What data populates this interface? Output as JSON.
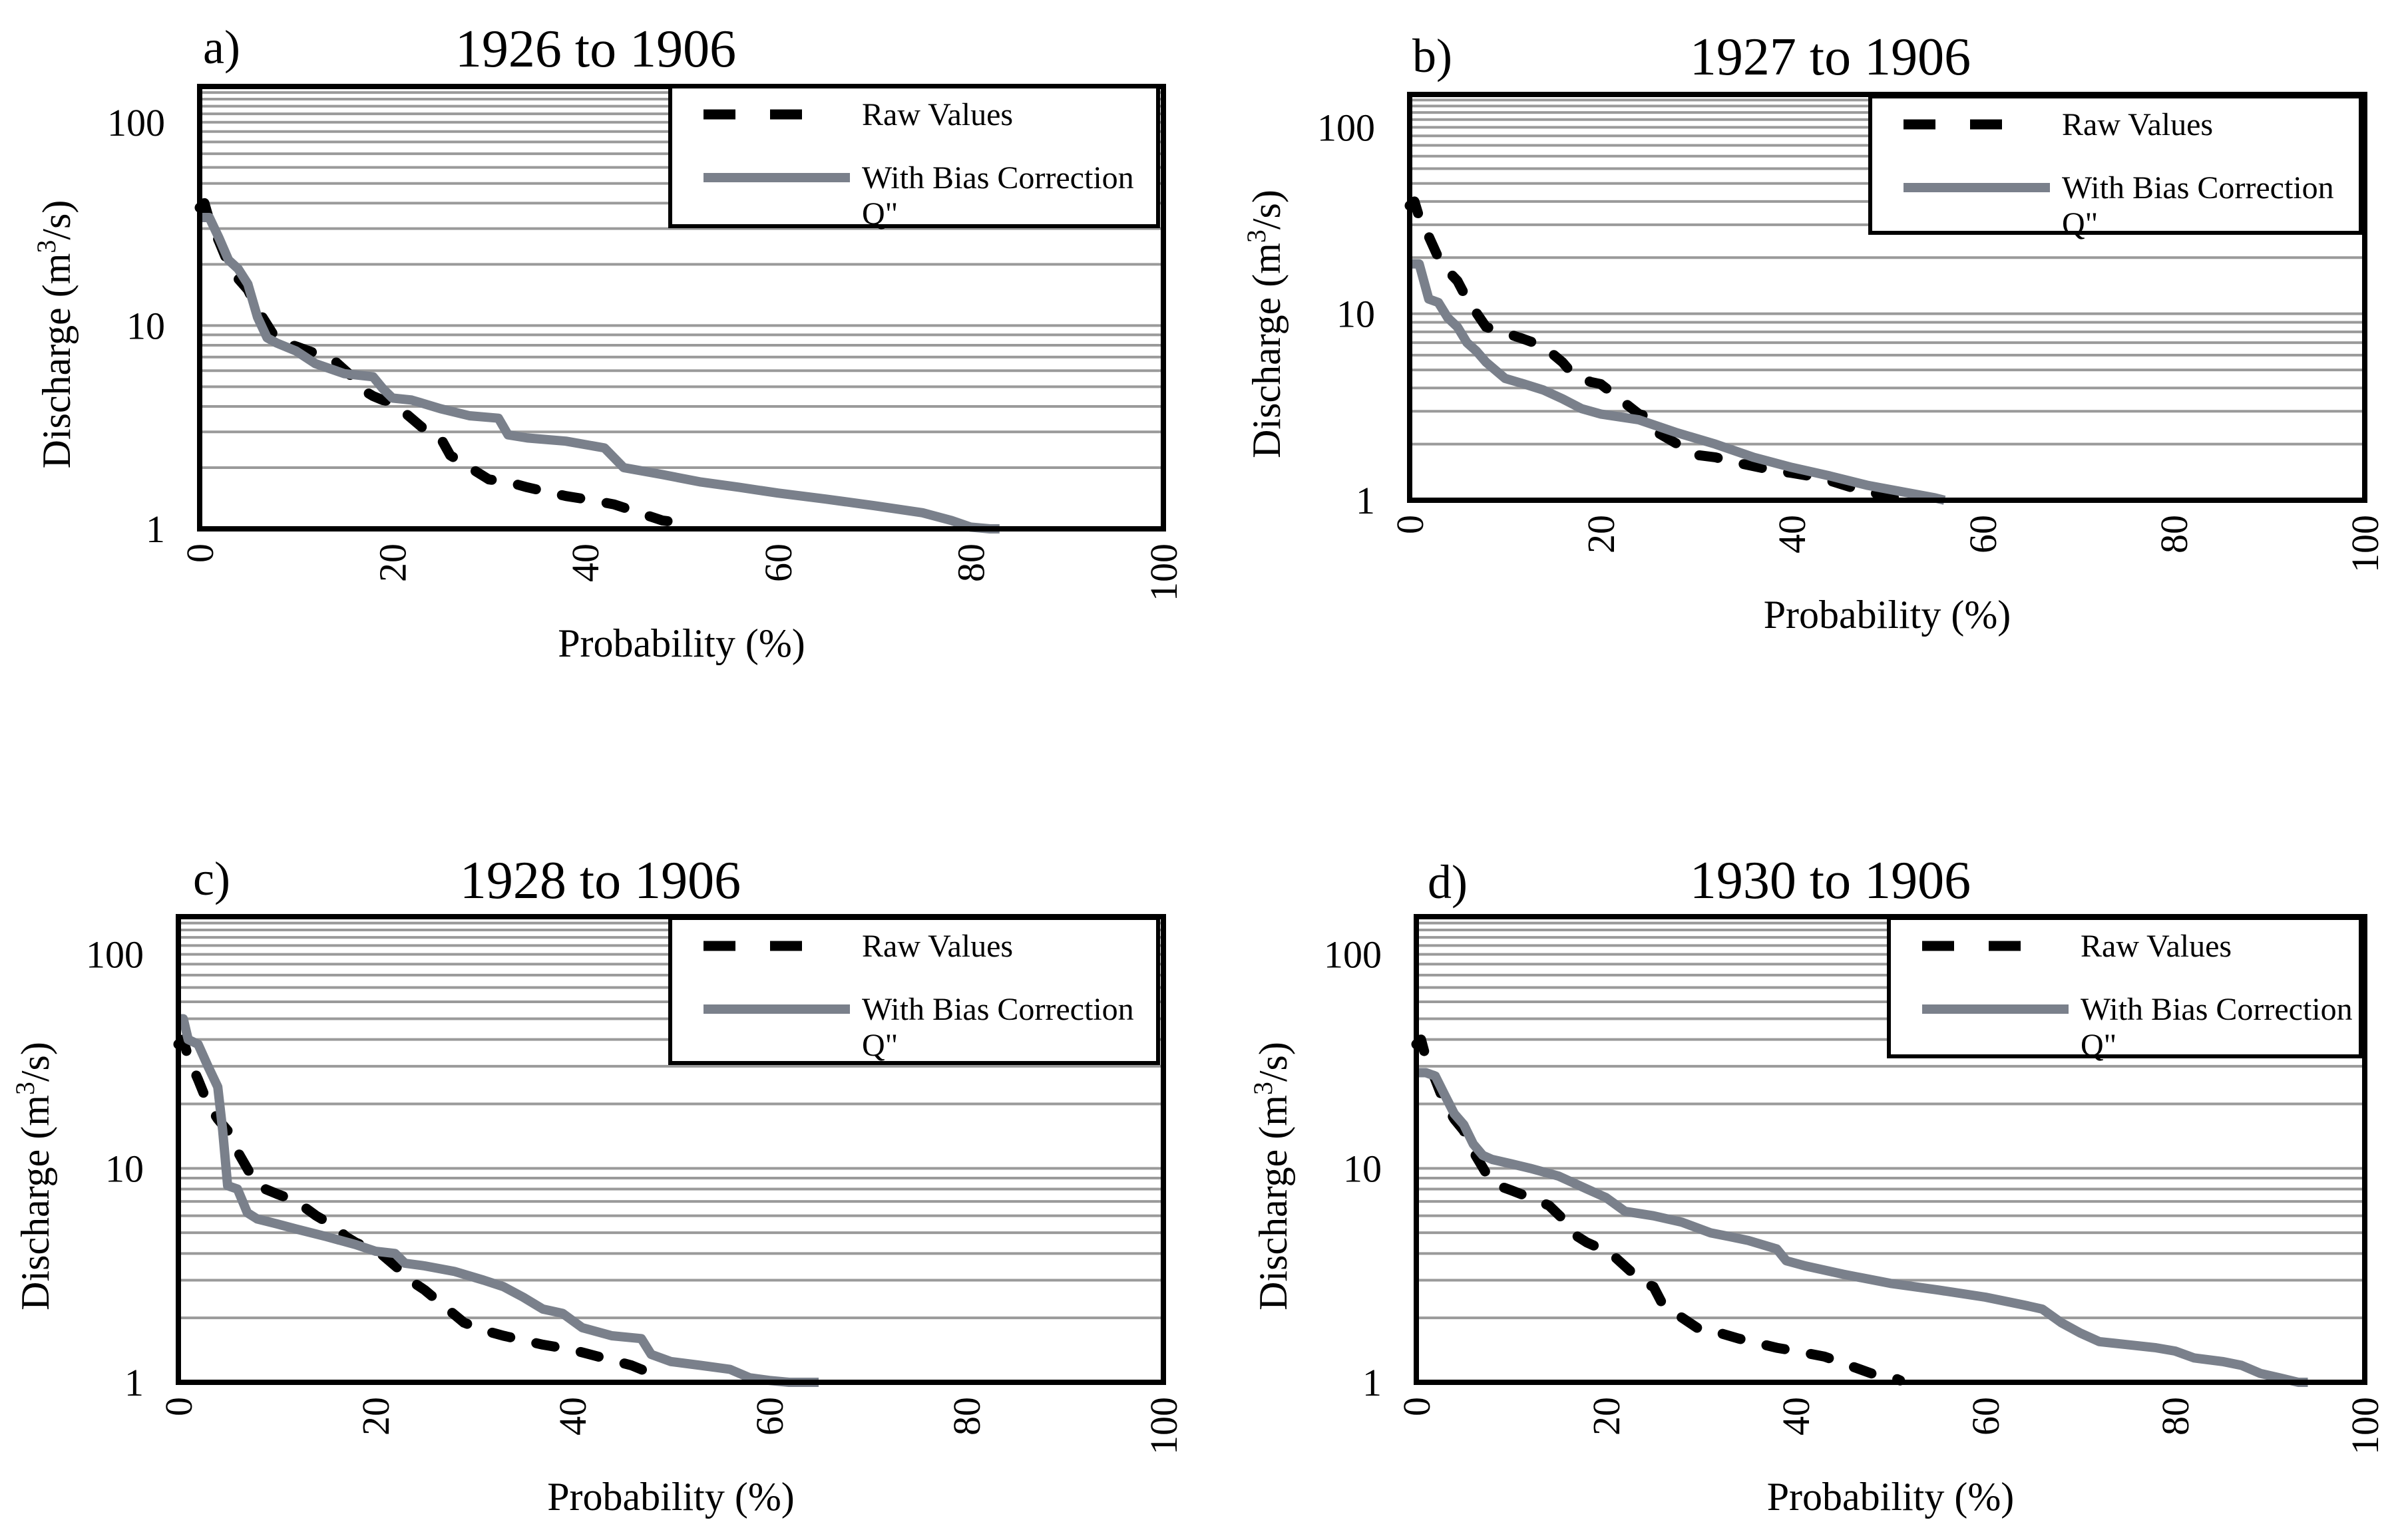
{
  "figure": {
    "y_tick_labels": [
      "1",
      "10",
      "100"
    ],
    "x_tick_labels": [
      "0",
      "20",
      "40",
      "60",
      "80",
      "100"
    ],
    "xlabel": "Probability (%)",
    "ylabel_text": "Discharge",
    "ylabel_units_prefix": "(m",
    "ylabel_units_sup": "3",
    "ylabel_units_suffix": "/s)"
  },
  "legend": {
    "raw": "Raw Values",
    "bias_line1": "With Bias Correction",
    "bias_line2": "Q\""
  },
  "colors": {
    "raw": "#000000",
    "bias": "#7a808b",
    "grid": "#9a9a9a"
  },
  "chart_data": [
    {
      "type": "line",
      "panel": "a)",
      "title": "1926 to 1906",
      "xlabel": "Probability (%)",
      "ylabel": "Discharge (m3/s)",
      "xlim": [
        0,
        100
      ],
      "ylim": [
        1,
        150
      ],
      "yscale": "log",
      "series": [
        {
          "name": "Raw Values",
          "style": "dashed",
          "x": [
            0,
            0.5,
            1,
            2,
            3,
            4,
            5,
            6,
            8,
            10,
            12,
            14,
            16,
            17,
            18,
            19,
            20,
            24,
            25,
            26,
            30,
            32,
            34,
            38,
            40,
            43,
            48,
            50,
            51
          ],
          "y": [
            38,
            40,
            33,
            26,
            20,
            17,
            15,
            12,
            8.5,
            7.9,
            7.3,
            6.7,
            5.5,
            4.8,
            4.5,
            4.3,
            4.2,
            2.9,
            2.8,
            2.3,
            1.75,
            1.7,
            1.6,
            1.45,
            1.4,
            1.32,
            1.1,
            1.07,
            1.02
          ]
        },
        {
          "name": "With Bias Correction Q\"",
          "style": "solid",
          "x": [
            0,
            1,
            2,
            3,
            4,
            5,
            6,
            7,
            8,
            10,
            12,
            15,
            18,
            19,
            20,
            22,
            25,
            28,
            31,
            32,
            34,
            38,
            42,
            44,
            48,
            52,
            56,
            60,
            65,
            70,
            75,
            78,
            80,
            82,
            83
          ],
          "y": [
            34,
            34,
            27,
            21,
            19,
            16,
            11,
            8.7,
            8.2,
            7.5,
            6.5,
            5.8,
            5.6,
            4.9,
            4.4,
            4.3,
            3.9,
            3.6,
            3.5,
            2.9,
            2.8,
            2.7,
            2.5,
            2.0,
            1.85,
            1.7,
            1.6,
            1.5,
            1.4,
            1.3,
            1.2,
            1.1,
            1.02,
            1.0,
            1.0
          ]
        }
      ]
    },
    {
      "type": "line",
      "panel": "b)",
      "title": "1927 to 1906",
      "xlabel": "Probability (%)",
      "ylabel": "Discharge (m3/s)",
      "xlim": [
        0,
        100
      ],
      "ylim": [
        1,
        150
      ],
      "yscale": "log",
      "series": [
        {
          "name": "Raw Values",
          "style": "dashed",
          "x": [
            0,
            0.5,
            1,
            2,
            3,
            4,
            5,
            6,
            8,
            10,
            12,
            14,
            16,
            17,
            18,
            19,
            20,
            24,
            25,
            26,
            30,
            32,
            34,
            38,
            40,
            43,
            48,
            50,
            51
          ],
          "y": [
            38,
            40,
            33,
            26,
            20,
            17,
            15,
            12,
            8.5,
            7.9,
            7.3,
            6.7,
            5.5,
            4.8,
            4.5,
            4.3,
            4.2,
            2.9,
            2.8,
            2.3,
            1.75,
            1.7,
            1.6,
            1.45,
            1.4,
            1.32,
            1.1,
            1.07,
            1.02
          ]
        },
        {
          "name": "With Bias Correction Q\"",
          "style": "solid",
          "x": [
            0,
            1,
            2,
            3,
            4,
            5,
            6,
            7,
            8,
            10,
            12,
            14,
            16,
            18,
            20,
            24,
            28,
            32,
            36,
            40,
            44,
            48,
            52,
            55,
            56
          ],
          "y": [
            18.5,
            18.5,
            12,
            11.5,
            9.5,
            8.5,
            7,
            6.3,
            5.5,
            4.5,
            4.2,
            3.9,
            3.5,
            3.1,
            2.9,
            2.7,
            2.3,
            2.0,
            1.7,
            1.5,
            1.35,
            1.2,
            1.1,
            1.03,
            1.0
          ]
        }
      ]
    },
    {
      "type": "line",
      "panel": "c)",
      "title": "1928 to 1906",
      "xlabel": "Probability (%)",
      "ylabel": "Discharge (m3/s)",
      "xlim": [
        0,
        100
      ],
      "ylim": [
        1,
        150
      ],
      "yscale": "log",
      "series": [
        {
          "name": "Raw Values",
          "style": "dashed",
          "x": [
            0,
            0.5,
            1,
            2,
            3,
            4,
            5,
            6,
            8,
            10,
            12,
            14,
            16,
            17,
            18,
            19,
            20,
            23,
            24,
            25,
            29,
            31,
            33,
            37,
            40,
            41,
            46,
            48,
            49
          ],
          "y": [
            38,
            40,
            33,
            26,
            20,
            17,
            15,
            12,
            8.3,
            7.6,
            7.0,
            6.0,
            5.3,
            4.8,
            4.5,
            4.3,
            4.2,
            3.2,
            2.9,
            2.7,
            1.9,
            1.75,
            1.65,
            1.5,
            1.42,
            1.38,
            1.2,
            1.1,
            1.05
          ]
        },
        {
          "name": "With Bias Correction Q\"",
          "style": "solid",
          "x": [
            0,
            0.5,
            1,
            2,
            3,
            4,
            4.5,
            5,
            6,
            7,
            8,
            10,
            12,
            15,
            18,
            20,
            22,
            23,
            25,
            28,
            31,
            33,
            35,
            37,
            39,
            41,
            44,
            47,
            48,
            50,
            53,
            56,
            58,
            60,
            62,
            65
          ],
          "y": [
            50,
            50,
            40,
            38,
            30,
            24,
            15,
            8.3,
            8.0,
            6.2,
            5.8,
            5.5,
            5.2,
            4.8,
            4.4,
            4.1,
            4.0,
            3.6,
            3.5,
            3.3,
            3.0,
            2.8,
            2.5,
            2.2,
            2.1,
            1.8,
            1.65,
            1.6,
            1.35,
            1.25,
            1.2,
            1.15,
            1.05,
            1.02,
            1.0,
            1.0
          ]
        }
      ]
    },
    {
      "type": "line",
      "panel": "d)",
      "title": "1930 to 1906",
      "xlabel": "Probability (%)",
      "ylabel": "Discharge (m3/s)",
      "xlim": [
        0,
        100
      ],
      "ylim": [
        1,
        150
      ],
      "yscale": "log",
      "series": [
        {
          "name": "Raw Values",
          "style": "dashed",
          "x": [
            0,
            0.5,
            1,
            2,
            3,
            4,
            5,
            6,
            8,
            10,
            12,
            14,
            16,
            17,
            18,
            19,
            20,
            24,
            25,
            26,
            30,
            32,
            34,
            38,
            40,
            43,
            48,
            50,
            51
          ],
          "y": [
            38,
            40,
            33,
            26,
            20,
            17,
            15,
            12,
            8.5,
            7.9,
            7.3,
            6.7,
            5.5,
            4.8,
            4.5,
            4.3,
            4.2,
            2.9,
            2.8,
            2.3,
            1.75,
            1.7,
            1.6,
            1.45,
            1.4,
            1.32,
            1.1,
            1.07,
            1.02
          ]
        },
        {
          "name": "With Bias Correction Q\"",
          "style": "solid",
          "x": [
            0,
            1,
            2,
            3,
            4,
            5,
            6,
            7,
            8,
            10,
            12,
            15,
            18,
            20,
            22,
            25,
            28,
            31,
            33,
            35,
            38,
            39,
            41,
            45,
            50,
            55,
            60,
            64,
            66,
            68,
            70,
            72,
            75,
            78,
            80,
            82,
            85,
            87,
            89,
            91,
            93,
            94
          ],
          "y": [
            28,
            28,
            27,
            22,
            18,
            16,
            13,
            11.5,
            11,
            10.5,
            10,
            9.2,
            8.0,
            7.3,
            6.3,
            6.0,
            5.6,
            5.0,
            4.8,
            4.6,
            4.2,
            3.7,
            3.5,
            3.2,
            2.9,
            2.7,
            2.5,
            2.3,
            2.2,
            1.9,
            1.7,
            1.55,
            1.5,
            1.45,
            1.4,
            1.3,
            1.25,
            1.2,
            1.1,
            1.05,
            1.0,
            1.0
          ]
        }
      ]
    }
  ]
}
